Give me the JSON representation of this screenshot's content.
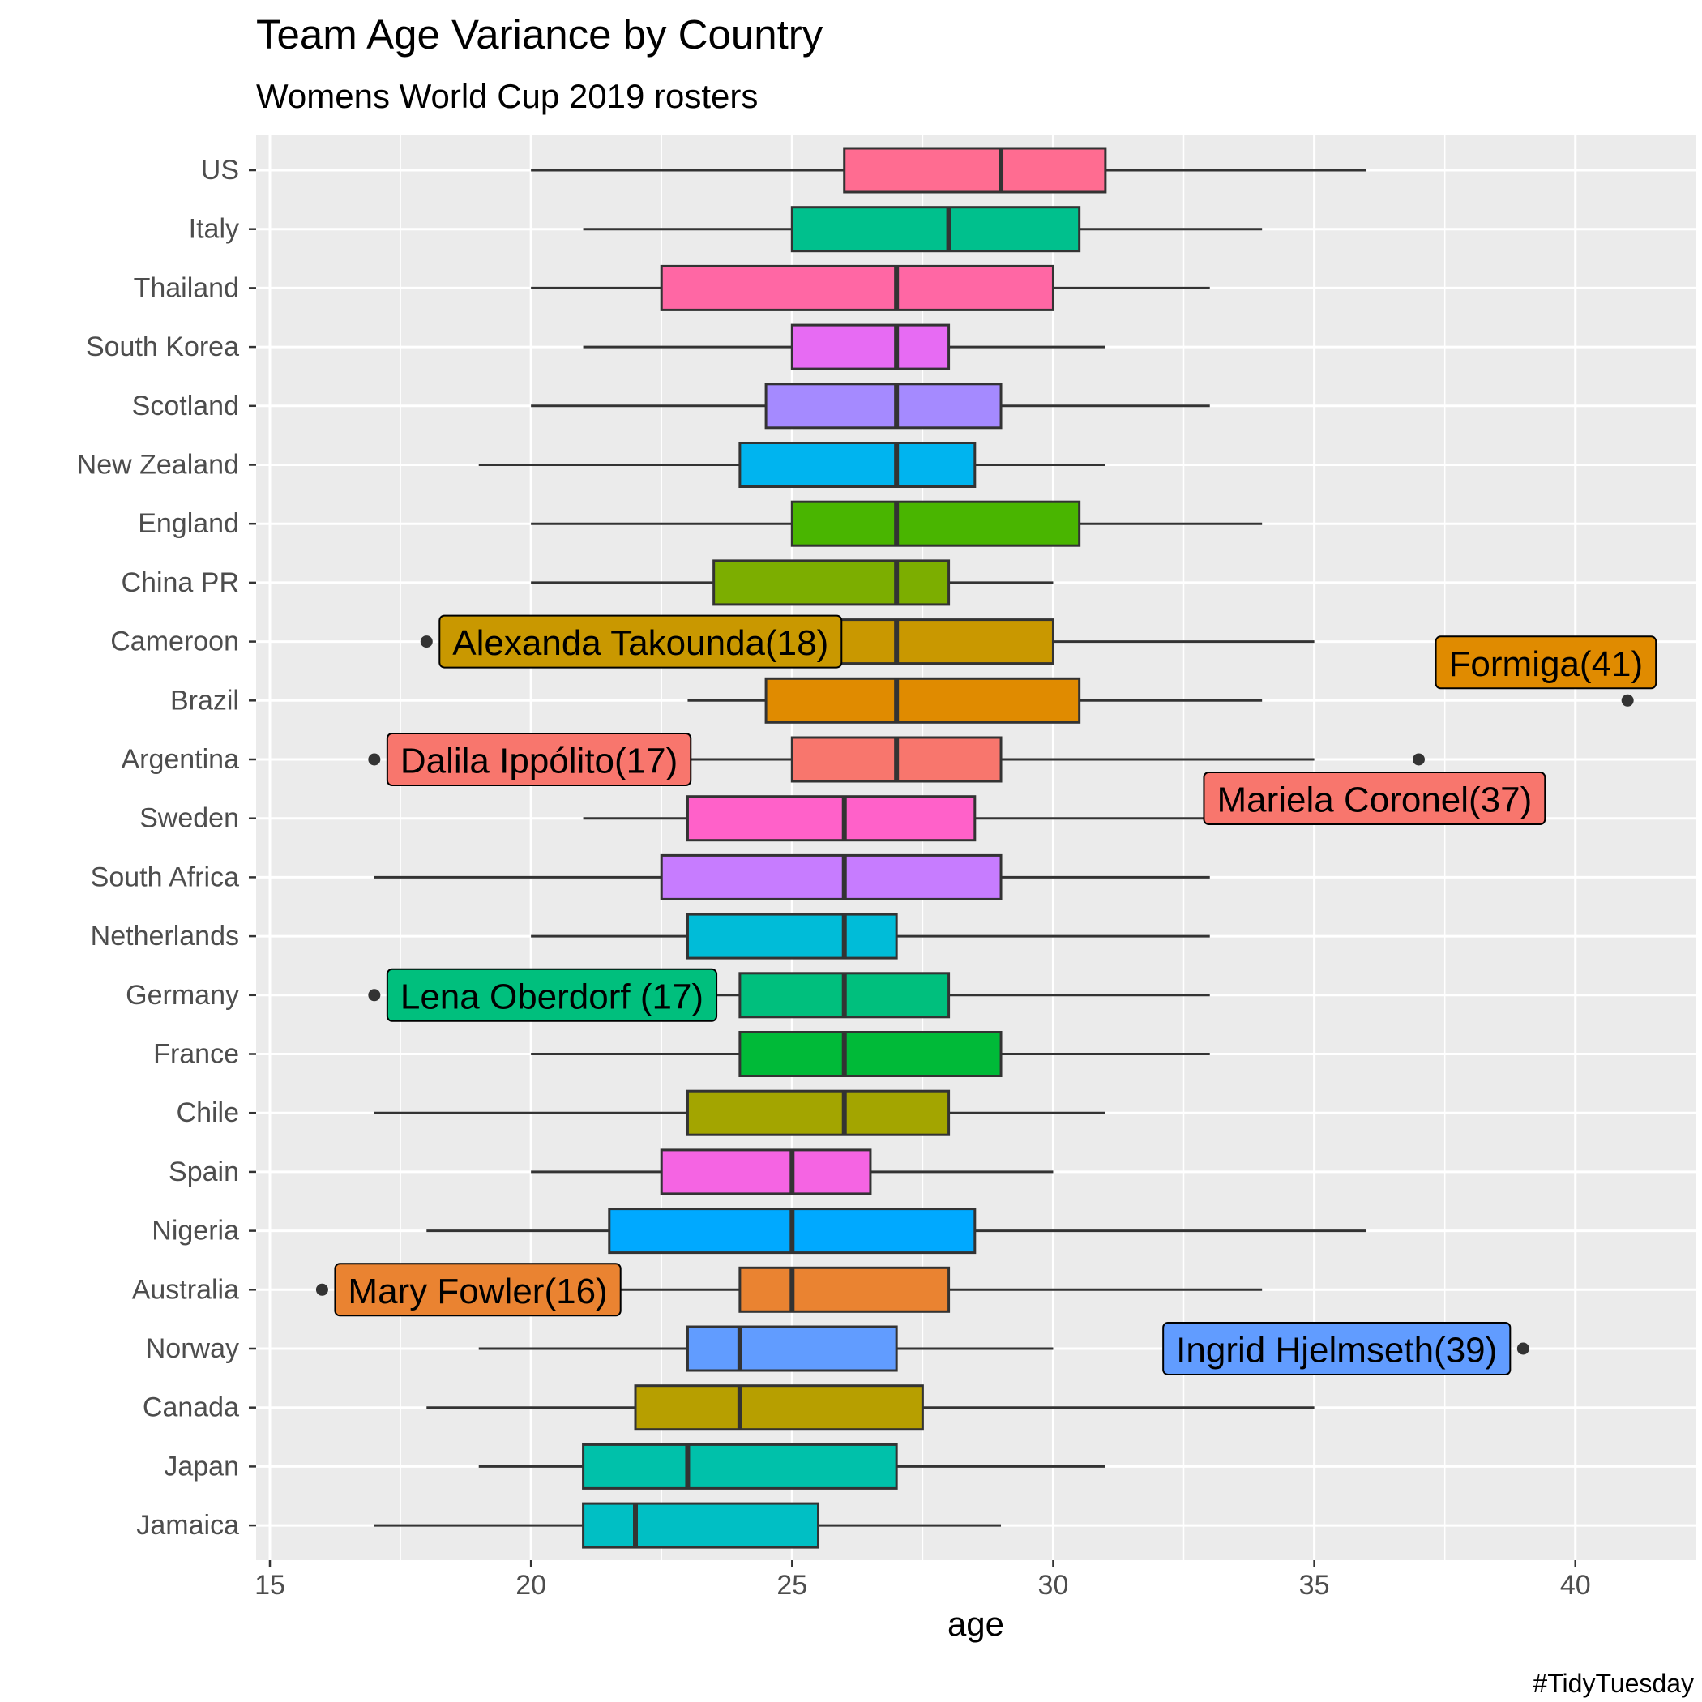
{
  "chart_data": {
    "type": "boxplot",
    "title": "Team Age Variance by Country",
    "subtitle": "Womens World Cup 2019 rosters",
    "xlabel": "age",
    "ylabel": "",
    "caption": "#TidyTuesday",
    "xlim": [
      14.7,
      42.3
    ],
    "xticks": [
      15,
      20,
      25,
      30,
      35,
      40
    ],
    "grid": true,
    "legend": "none",
    "categories": [
      "US",
      "Italy",
      "Thailand",
      "South Korea",
      "Scotland",
      "New Zealand",
      "England",
      "China PR",
      "Cameroon",
      "Brazil",
      "Argentina",
      "Sweden",
      "South Africa",
      "Netherlands",
      "Germany",
      "France",
      "Chile",
      "Spain",
      "Nigeria",
      "Australia",
      "Norway",
      "Canada",
      "Japan",
      "Jamaica"
    ],
    "boxes": [
      {
        "country": "US",
        "whisker_low": 20,
        "q1": 26,
        "median": 29,
        "q3": 31,
        "whisker_high": 36,
        "color": "#FF6C91"
      },
      {
        "country": "Italy",
        "whisker_low": 21,
        "q1": 25,
        "median": 28,
        "q3": 30.5,
        "whisker_high": 34,
        "color": "#00C08D"
      },
      {
        "country": "Thailand",
        "whisker_low": 20,
        "q1": 22.5,
        "median": 27,
        "q3": 30,
        "whisker_high": 33,
        "color": "#FF67A4"
      },
      {
        "country": "South Korea",
        "whisker_low": 21,
        "q1": 25,
        "median": 27,
        "q3": 28,
        "whisker_high": 31,
        "color": "#E76BF3"
      },
      {
        "country": "Scotland",
        "whisker_low": 20,
        "q1": 24.5,
        "median": 27,
        "q3": 29,
        "whisker_high": 33,
        "color": "#A58AFF"
      },
      {
        "country": "New Zealand",
        "whisker_low": 19,
        "q1": 24,
        "median": 27,
        "q3": 28.5,
        "whisker_high": 31,
        "color": "#00B4EF"
      },
      {
        "country": "England",
        "whisker_low": 20,
        "q1": 25,
        "median": 27,
        "q3": 30.5,
        "whisker_high": 34,
        "color": "#49B500"
      },
      {
        "country": "China PR",
        "whisker_low": 20,
        "q1": 23.5,
        "median": 27,
        "q3": 28,
        "whisker_high": 30,
        "color": "#7CAE00"
      },
      {
        "country": "Cameroon",
        "whisker_low": 20,
        "q1": 24,
        "median": 27,
        "q3": 30,
        "whisker_high": 35,
        "color": "#C99800"
      },
      {
        "country": "Brazil",
        "whisker_low": 23,
        "q1": 24.5,
        "median": 27,
        "q3": 30.5,
        "whisker_high": 34,
        "color": "#E08B00"
      },
      {
        "country": "Argentina",
        "whisker_low": 22,
        "q1": 25,
        "median": 27,
        "q3": 29,
        "whisker_high": 35,
        "color": "#F8766D"
      },
      {
        "country": "Sweden",
        "whisker_low": 21,
        "q1": 23,
        "median": 26,
        "q3": 28.5,
        "whisker_high": 34,
        "color": "#FF61C9"
      },
      {
        "country": "South Africa",
        "whisker_low": 17,
        "q1": 22.5,
        "median": 26,
        "q3": 29,
        "whisker_high": 33,
        "color": "#C77CFF"
      },
      {
        "country": "Netherlands",
        "whisker_low": 20,
        "q1": 23,
        "median": 26,
        "q3": 27,
        "whisker_high": 33,
        "color": "#00BCD8"
      },
      {
        "country": "Germany",
        "whisker_low": 21,
        "q1": 24,
        "median": 26,
        "q3": 28,
        "whisker_high": 33,
        "color": "#00BF7D"
      },
      {
        "country": "France",
        "whisker_low": 20,
        "q1": 24,
        "median": 26,
        "q3": 29,
        "whisker_high": 33,
        "color": "#00BA38"
      },
      {
        "country": "Chile",
        "whisker_low": 17,
        "q1": 23,
        "median": 26,
        "q3": 28,
        "whisker_high": 31,
        "color": "#A3A500"
      },
      {
        "country": "Spain",
        "whisker_low": 20,
        "q1": 22.5,
        "median": 25,
        "q3": 26.5,
        "whisker_high": 30,
        "color": "#F564E3"
      },
      {
        "country": "Nigeria",
        "whisker_low": 18,
        "q1": 21.5,
        "median": 25,
        "q3": 28.5,
        "whisker_high": 36,
        "color": "#00A9FF"
      },
      {
        "country": "Australia",
        "whisker_low": 20,
        "q1": 24,
        "median": 25,
        "q3": 28,
        "whisker_high": 34,
        "color": "#EA8331"
      },
      {
        "country": "Norway",
        "whisker_low": 19,
        "q1": 23,
        "median": 24,
        "q3": 27,
        "whisker_high": 30,
        "color": "#619CFF"
      },
      {
        "country": "Canada",
        "whisker_low": 18,
        "q1": 22,
        "median": 24,
        "q3": 27.5,
        "whisker_high": 35,
        "color": "#B79F00"
      },
      {
        "country": "Japan",
        "whisker_low": 19,
        "q1": 21,
        "median": 23,
        "q3": 27,
        "whisker_high": 31,
        "color": "#00C1AA"
      },
      {
        "country": "Jamaica",
        "whisker_low": 17,
        "q1": 21,
        "median": 22,
        "q3": 25.5,
        "whisker_high": 29,
        "color": "#00BFC4"
      }
    ],
    "outliers": [
      {
        "country": "Cameroon",
        "age": 18
      },
      {
        "country": "Brazil",
        "age": 41
      },
      {
        "country": "Argentina",
        "age": 17
      },
      {
        "country": "Argentina",
        "age": 37
      },
      {
        "country": "Germany",
        "age": 17
      },
      {
        "country": "Australia",
        "age": 16
      },
      {
        "country": "Norway",
        "age": 39
      }
    ],
    "annotations": [
      {
        "text": "Alexanda Takounda(18)",
        "country": "Cameroon",
        "age": 18,
        "side": "right",
        "color": "#C99800"
      },
      {
        "text": "Formiga(41)",
        "country": "Brazil",
        "age": 41,
        "side": "above-left",
        "color": "#E08B00"
      },
      {
        "text": "Dalila Ippólito(17)",
        "country": "Argentina",
        "age": 17,
        "side": "right",
        "color": "#F8766D"
      },
      {
        "text": "Mariela Coronel(37)",
        "country": "Argentina",
        "age": 37,
        "side": "below",
        "color": "#F8766D"
      },
      {
        "text": "Lena Oberdorf (17)",
        "country": "Germany",
        "age": 17,
        "side": "right",
        "color": "#00BF7D"
      },
      {
        "text": "Mary Fowler(16)",
        "country": "Australia",
        "age": 16,
        "side": "right",
        "color": "#EA8331"
      },
      {
        "text": "Ingrid Hjelmseth(39)",
        "country": "Norway",
        "age": 39,
        "side": "left",
        "color": "#619CFF"
      }
    ]
  }
}
